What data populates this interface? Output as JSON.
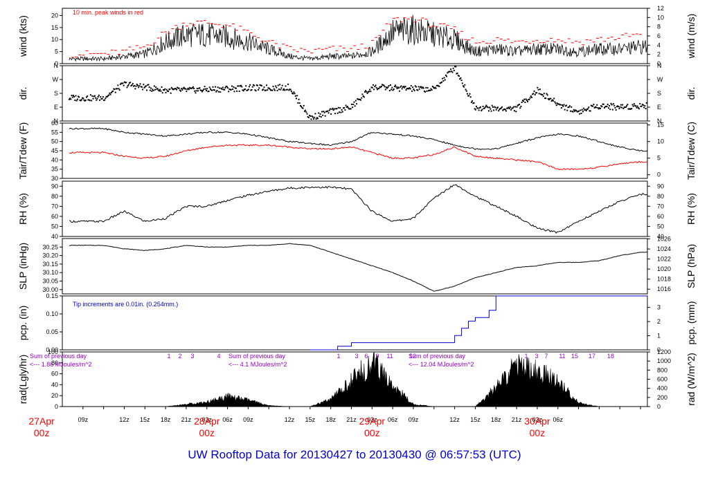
{
  "title": "UW Rooftop Data for 20130427  to  20130430 @ 06:57:53  (UTC)",
  "colors": {
    "main": "#000000",
    "accent": "#ff0000",
    "blue": "#0000cc",
    "purple": "#9900cc"
  },
  "chart_data": [
    {
      "type": "line",
      "panel": "wind",
      "ylabel": "wind (kts)",
      "ylabel2": "wind (m/s)",
      "ylim": [
        0,
        23
      ],
      "yticks": [
        0,
        5,
        10,
        15,
        20
      ],
      "y2lim": [
        0,
        12
      ],
      "y2ticks": [
        0,
        2,
        4,
        6,
        8,
        10,
        12
      ],
      "annotation": "10 min. peak winds in red",
      "x_hours": [
        0,
        3,
        6,
        9,
        12,
        15,
        18,
        21,
        24,
        27,
        30,
        33,
        36,
        39,
        42,
        45,
        48,
        51,
        54,
        57,
        60,
        63,
        66,
        69,
        72,
        75,
        78
      ],
      "series": [
        {
          "values": [
            2,
            3,
            4,
            9,
            12,
            12,
            11,
            9,
            6,
            3,
            2,
            3,
            3,
            5,
            13,
            14,
            12,
            10,
            5,
            6,
            5,
            6,
            6,
            5,
            6,
            6,
            7
          ]
        },
        {
          "values": [
            4,
            5,
            7,
            13,
            17,
            17,
            16,
            13,
            9,
            6,
            5,
            6,
            6,
            8,
            18,
            19,
            16,
            14,
            9,
            10,
            9,
            10,
            10,
            9,
            10,
            11,
            12
          ]
        }
      ]
    },
    {
      "type": "scatter",
      "panel": "dir",
      "ylabel": "dir.",
      "ylabel2": "dir.",
      "yticks_labels": [
        "N",
        "E",
        "S",
        "W",
        "N"
      ],
      "ylim": [
        0,
        360
      ],
      "x_hours": [
        0,
        3,
        6,
        9,
        12,
        15,
        18,
        21,
        24,
        27,
        30,
        33,
        36,
        39,
        42,
        45,
        48,
        51,
        54,
        57,
        60,
        63,
        66,
        69,
        72,
        75,
        78
      ],
      "values": [
        150,
        240,
        220,
        200,
        200,
        205,
        210,
        215,
        215,
        220,
        20,
        60,
        90,
        220,
        215,
        210,
        205,
        350,
        90,
        80,
        80,
        200,
        110,
        60,
        100,
        90,
        100
      ]
    },
    {
      "type": "line",
      "panel": "temp",
      "ylabel": "Tair/Tdew (F)",
      "ylabel2": "Tair/Tdew (C)",
      "ylim": [
        30,
        60
      ],
      "yticks": [
        30,
        35,
        40,
        45,
        50,
        55,
        60
      ],
      "y2ticks": [
        0,
        5,
        10,
        15
      ],
      "x_hours": [
        0,
        3,
        6,
        9,
        12,
        15,
        18,
        21,
        24,
        27,
        30,
        33,
        36,
        39,
        42,
        45,
        48,
        51,
        54,
        57,
        60,
        63,
        66,
        69,
        72,
        75,
        78
      ],
      "series": [
        {
          "name": "Tair",
          "values": [
            57,
            55,
            54,
            53,
            54,
            55,
            55,
            54,
            52,
            50,
            49,
            48,
            50,
            55,
            54,
            53,
            51,
            48,
            46,
            46,
            49,
            52,
            54,
            53,
            50,
            47,
            45
          ]
        },
        {
          "name": "Tdew",
          "values": [
            44,
            42,
            41,
            42,
            45,
            47,
            48,
            48,
            48,
            47,
            46,
            46,
            47,
            44,
            41,
            41,
            43,
            47,
            42,
            41,
            40,
            39,
            35,
            35,
            36,
            38,
            39
          ]
        }
      ]
    },
    {
      "type": "line",
      "panel": "rh",
      "ylabel": "RH (%)",
      "ylabel2": "RH (%)",
      "ylim": [
        40,
        95
      ],
      "yticks": [
        40,
        50,
        60,
        70,
        80,
        90
      ],
      "x_hours": [
        0,
        3,
        6,
        9,
        12,
        15,
        18,
        21,
        24,
        27,
        30,
        33,
        36,
        39,
        42,
        45,
        48,
        51,
        54,
        57,
        60,
        63,
        66,
        69,
        72,
        75,
        78
      ],
      "values": [
        55,
        65,
        55,
        58,
        70,
        70,
        76,
        81,
        85,
        88,
        89,
        89,
        87,
        65,
        55,
        58,
        78,
        92,
        80,
        70,
        60,
        48,
        44,
        55,
        65,
        75,
        82
      ]
    },
    {
      "type": "line",
      "panel": "slp",
      "ylabel": "SLP (inHg)",
      "ylabel2": "SLP (hPa)",
      "ylim": [
        29.975,
        30.3
      ],
      "yticks": [
        30.0,
        30.05,
        30.1,
        30.15,
        30.2,
        30.25
      ],
      "ytick_labels": [
        "30.00",
        "30.05",
        "30.10",
        "30.15",
        "30.20",
        "30.25"
      ],
      "y2ticks": [
        1016,
        1018,
        1020,
        1022,
        1024,
        1026
      ],
      "x_hours": [
        0,
        3,
        6,
        9,
        12,
        15,
        18,
        21,
        24,
        27,
        30,
        33,
        36,
        39,
        42,
        45,
        48,
        51,
        54,
        57,
        60,
        63,
        66,
        69,
        72,
        75,
        78
      ],
      "values": [
        30.26,
        30.24,
        30.23,
        30.24,
        30.26,
        30.25,
        30.25,
        30.26,
        30.26,
        30.27,
        30.26,
        30.22,
        30.18,
        30.14,
        30.1,
        30.05,
        29.99,
        30.02,
        30.07,
        30.1,
        30.13,
        30.14,
        30.16,
        30.16,
        30.17,
        30.2,
        30.22
      ]
    },
    {
      "type": "line",
      "panel": "pcp",
      "ylabel": "pcp. (in)",
      "ylabel2": "pcp. (mm)",
      "ylim": [
        0,
        0.15
      ],
      "yticks": [
        0.0,
        0.05,
        0.1,
        0.15
      ],
      "ytick_labels": [
        "0.00",
        "0.05",
        "0.10",
        "0.15"
      ],
      "y2ticks": [
        0,
        1,
        2,
        3
      ],
      "annotation": "Tip increments are 0.01in. (0.254mm.)",
      "x_hours": [
        0,
        30,
        34,
        36,
        42,
        50,
        51,
        52,
        53,
        54,
        56,
        57,
        60,
        78
      ],
      "values": [
        0,
        0,
        0.01,
        0.02,
        0.02,
        0.02,
        0.04,
        0.06,
        0.08,
        0.09,
        0.11,
        0.15,
        0.15,
        0.15
      ]
    },
    {
      "type": "area",
      "panel": "rad",
      "ylabel": "rad(Lgly/hr)",
      "ylabel2": "rad (W/m^2)",
      "ylim": [
        0,
        100
      ],
      "yticks": [
        0,
        20,
        40,
        60,
        80,
        100
      ],
      "y2ticks": [
        0,
        200,
        400,
        600,
        800,
        1000,
        1200
      ],
      "x_hours": [
        0,
        3,
        6,
        9,
        12,
        15,
        18,
        21,
        24,
        27,
        30,
        33,
        36,
        39,
        42,
        45,
        48,
        51,
        54,
        57,
        60,
        63,
        66,
        69,
        72,
        75,
        78
      ],
      "values": [
        0,
        0,
        0,
        0,
        5,
        10,
        22,
        14,
        2,
        0,
        0,
        15,
        55,
        95,
        45,
        5,
        0,
        0,
        0,
        40,
        90,
        75,
        55,
        8,
        0,
        0,
        0
      ],
      "annotations": [
        {
          "text": "Sum of previous day",
          "sub": "<--- 1.86 MJoules/m^2"
        },
        {
          "text": "Sum of previous day",
          "sub": "<--- 4.1 MJoules/m^2"
        },
        {
          "text": "Sum of previous day",
          "sub": "<--- 12.04 MJoules/m^2"
        }
      ],
      "hour_marks": [
        "1",
        "2",
        "3",
        "4",
        "1",
        "3",
        "6",
        "9",
        "11",
        "12",
        "1",
        "3",
        "7",
        "11",
        "15",
        "17",
        "18"
      ]
    }
  ],
  "x_axis": {
    "tick_labels": [
      "09z",
      "12z",
      "15z",
      "18z",
      "21z",
      "03z",
      "06z",
      "09z",
      "12z",
      "15z",
      "18z",
      "21z",
      "03z",
      "06z",
      "09z",
      "12z",
      "15z",
      "18z",
      "21z",
      "03z",
      "06z"
    ],
    "day_labels": [
      {
        "date": "27Apr",
        "time": "00z"
      },
      {
        "date": "28Apr",
        "time": "00z"
      },
      {
        "date": "29Apr",
        "time": "00z"
      },
      {
        "date": "30Apr",
        "time": "00z"
      }
    ]
  }
}
